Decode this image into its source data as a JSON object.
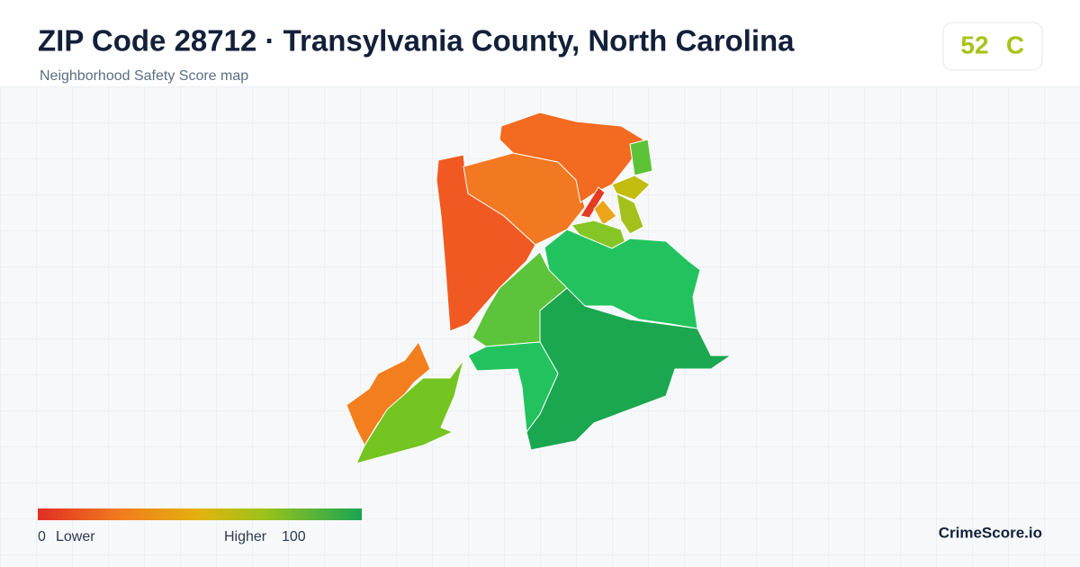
{
  "header": {
    "title": "ZIP Code 28712 · Transylvania County, North Carolina",
    "subtitle": "Neighborhood Safety Score map"
  },
  "score": {
    "value": 52,
    "grade": "C"
  },
  "legend": {
    "min": 0,
    "min_label": "Lower",
    "max_label": "Higher",
    "max": 100
  },
  "brand": "CrimeScore.io"
}
